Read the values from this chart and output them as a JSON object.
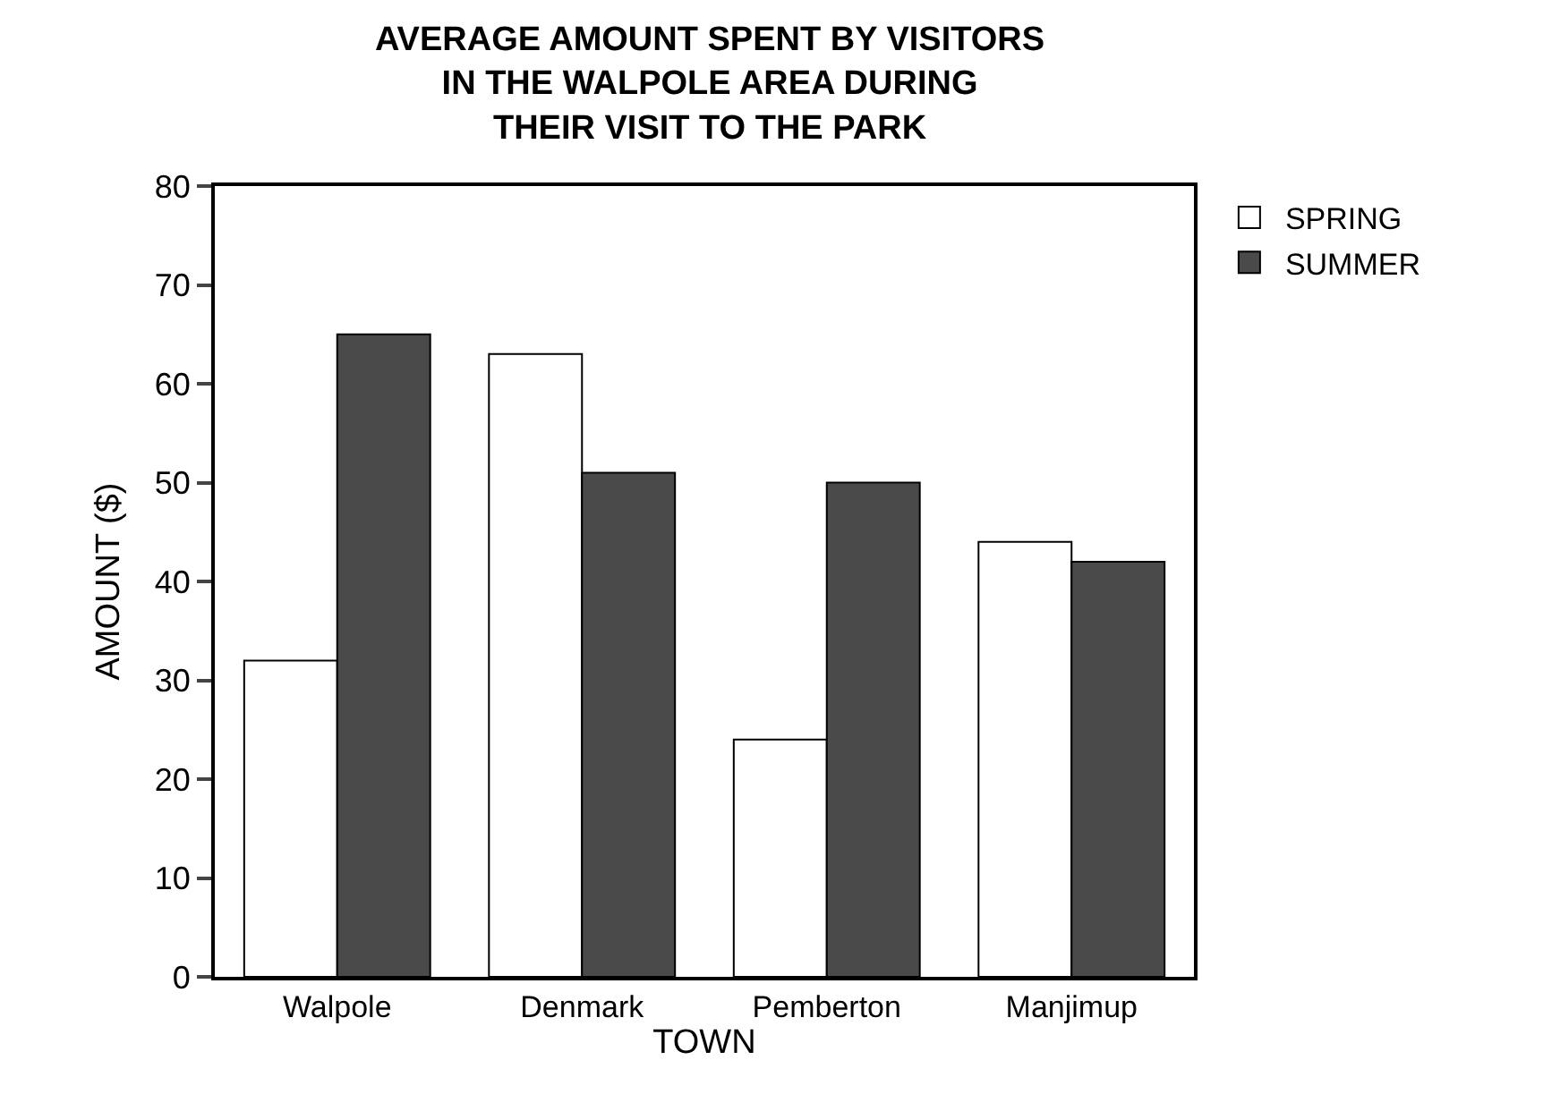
{
  "chart_data": {
    "type": "bar",
    "title": "AVERAGE AMOUNT SPENT BY VISITORS\nIN THE WALPOLE AREA DURING\nTHEIR VISIT TO THE PARK",
    "xlabel": "TOWN",
    "ylabel": "AMOUNT ($)",
    "categories": [
      "Walpole",
      "Denmark",
      "Pemberton",
      "Manjimup"
    ],
    "series": [
      {
        "name": "SPRING",
        "color": "#ffffff",
        "values": [
          32,
          63,
          24,
          44
        ]
      },
      {
        "name": "SUMMER",
        "color": "#4a4a4a",
        "values": [
          65,
          51,
          50,
          42
        ]
      }
    ],
    "ylim": [
      0,
      80
    ],
    "yticks": [
      0,
      10,
      20,
      30,
      40,
      50,
      60,
      70,
      80
    ],
    "grid": false,
    "legend": "top right"
  }
}
